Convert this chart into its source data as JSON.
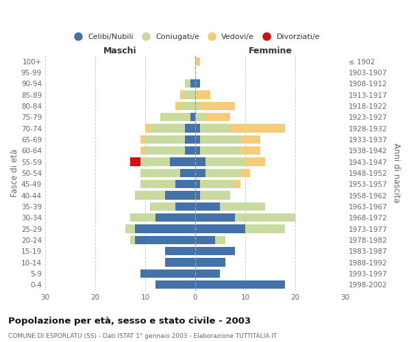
{
  "age_groups": [
    "100+",
    "95-99",
    "90-94",
    "85-89",
    "80-84",
    "75-79",
    "70-74",
    "65-69",
    "60-64",
    "55-59",
    "50-54",
    "45-49",
    "40-44",
    "35-39",
    "30-34",
    "25-29",
    "20-24",
    "15-19",
    "10-14",
    "5-9",
    "0-4"
  ],
  "birth_years": [
    "≤ 1902",
    "1903-1907",
    "1908-1912",
    "1913-1917",
    "1918-1922",
    "1923-1927",
    "1928-1932",
    "1933-1937",
    "1938-1942",
    "1943-1947",
    "1948-1952",
    "1953-1957",
    "1958-1962",
    "1963-1967",
    "1968-1972",
    "1973-1977",
    "1978-1982",
    "1983-1987",
    "1988-1992",
    "1993-1997",
    "1998-2002"
  ],
  "maschi_celibi": [
    0,
    0,
    1,
    0,
    0,
    1,
    2,
    2,
    2,
    5,
    3,
    4,
    6,
    4,
    8,
    12,
    12,
    6,
    6,
    11,
    8
  ],
  "maschi_coniugati": [
    0,
    0,
    1,
    2,
    3,
    6,
    7,
    8,
    8,
    6,
    8,
    7,
    6,
    5,
    5,
    2,
    1,
    0,
    0,
    0,
    0
  ],
  "maschi_vedovi": [
    0,
    0,
    0,
    1,
    1,
    0,
    1,
    1,
    1,
    0,
    0,
    0,
    0,
    0,
    0,
    0,
    0,
    0,
    0,
    0,
    0
  ],
  "maschi_divorziati": [
    0,
    0,
    0,
    0,
    0,
    0,
    0,
    0,
    0,
    2,
    0,
    0,
    0,
    0,
    0,
    0,
    0,
    0,
    0,
    0,
    0
  ],
  "femmine_nubili": [
    0,
    0,
    1,
    0,
    0,
    0,
    1,
    1,
    1,
    2,
    2,
    1,
    1,
    5,
    8,
    10,
    4,
    8,
    6,
    5,
    18
  ],
  "femmine_coniugate": [
    0,
    0,
    0,
    0,
    1,
    2,
    6,
    8,
    8,
    8,
    7,
    7,
    6,
    9,
    12,
    8,
    2,
    0,
    0,
    0,
    0
  ],
  "femmine_vedove": [
    1,
    0,
    0,
    3,
    7,
    5,
    11,
    4,
    4,
    4,
    2,
    1,
    0,
    0,
    0,
    0,
    0,
    0,
    0,
    0,
    0
  ],
  "femmine_divorziate": [
    0,
    0,
    0,
    0,
    0,
    0,
    0,
    0,
    0,
    0,
    0,
    0,
    0,
    0,
    0,
    0,
    0,
    0,
    0,
    0,
    0
  ],
  "color_celibi": "#4472a8",
  "color_coniugati": "#c8daa0",
  "color_vedovi": "#f5cc7a",
  "color_divorziati": "#cc1111",
  "xlim": 30,
  "xticks": [
    -30,
    -20,
    -10,
    0,
    10,
    20,
    30
  ],
  "title": "Popolazione per età, sesso e stato civile - 2003",
  "subtitle": "COMUNE DI ESPORLATU (SS) - Dati ISTAT 1° gennaio 2003 - Elaborazione TUTTITALIA.IT",
  "label_maschi": "Maschi",
  "label_femmine": "Femmine",
  "ylabel_left": "Fasce di età",
  "ylabel_right": "Anni di nascita",
  "legend_labels": [
    "Celibi/Nubili",
    "Coniugati/e",
    "Vedovi/e",
    "Divorziati/e"
  ],
  "bar_height": 0.75,
  "background": "#ffffff",
  "grid_color": "#cccccc",
  "text_color": "#666666",
  "title_color": "#111111"
}
